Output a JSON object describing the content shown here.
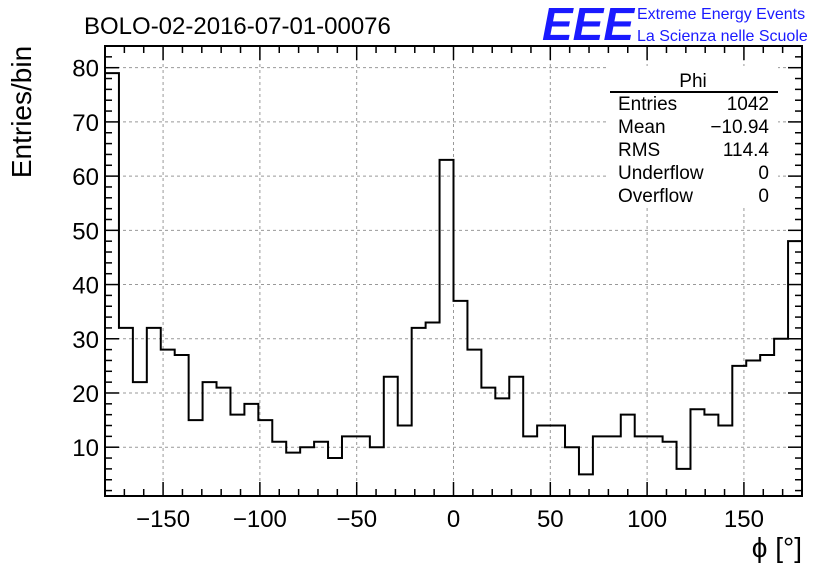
{
  "title": "BOLO-02-2016-07-01-00076",
  "logo": {
    "mark": "EEE",
    "line1": "Extreme Energy Events",
    "line2": "La Scienza nelle Scuole",
    "color": "#1a1aff"
  },
  "stats_box": {
    "title": "Phi",
    "rows": [
      {
        "label": "Entries",
        "value": "1042"
      },
      {
        "label": "Mean",
        "value": "−10.94"
      },
      {
        "label": "RMS",
        "value": "114.4"
      },
      {
        "label": "Underflow",
        "value": "0"
      },
      {
        "label": "Overflow",
        "value": "0"
      }
    ]
  },
  "chart_data": {
    "type": "histogram",
    "title": "BOLO-02-2016-07-01-00076",
    "xlabel": "ϕ [°]",
    "ylabel": "Entries/bin",
    "xlim": [
      -180,
      180
    ],
    "ylim": [
      1,
      84
    ],
    "grid": true,
    "bin_width": 7.2,
    "x_ticks": [
      -150,
      -100,
      -50,
      0,
      50,
      100,
      150
    ],
    "x_tick_labels": [
      "−150",
      "−100",
      "−50",
      "0",
      "50",
      "100",
      "150"
    ],
    "y_ticks": [
      10,
      20,
      30,
      40,
      50,
      60,
      70,
      80
    ],
    "y_tick_labels": [
      "10",
      "20",
      "30",
      "40",
      "50",
      "60",
      "70",
      "80"
    ],
    "values": [
      79,
      32,
      22,
      32,
      28,
      27,
      15,
      22,
      21,
      16,
      18,
      15,
      11,
      9,
      10,
      11,
      8,
      12,
      12,
      10,
      23,
      14,
      32,
      33,
      63,
      37,
      28,
      21,
      19,
      23,
      12,
      14,
      14,
      10,
      5,
      12,
      12,
      16,
      12,
      12,
      11,
      6,
      17,
      16,
      14,
      25,
      26,
      27,
      30,
      48
    ]
  }
}
